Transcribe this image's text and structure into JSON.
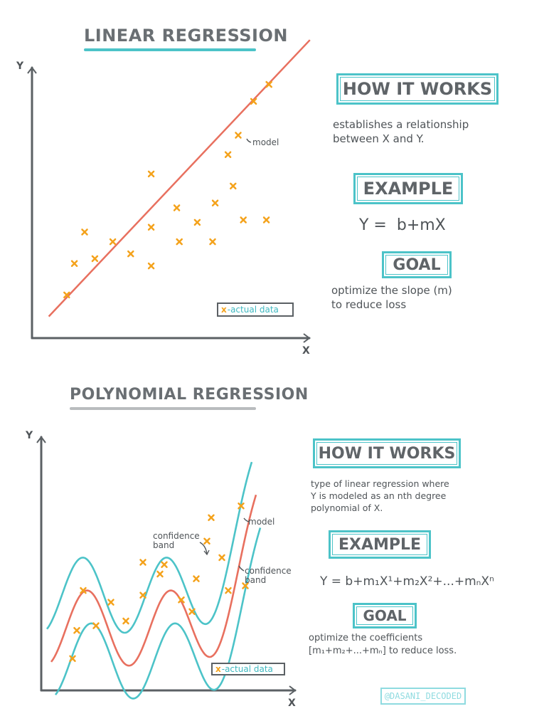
{
  "linear": {
    "title": "LINEAR REGRESSION",
    "how_title": "HOW IT WORKS",
    "how_text": [
      "establishes a relationship",
      "between X and Y."
    ],
    "example_title": "EXAMPLE",
    "formula": "Y =  b+mX",
    "goal_title": "GOAL",
    "goal_text": [
      "optimize the slope (m)",
      "to reduce loss"
    ],
    "model_label": "model",
    "legend_mark": "x",
    "legend_text": "-actual data",
    "y_axis": "Y",
    "x_axis": "X"
  },
  "polynomial": {
    "title": "POLYNOMIAL REGRESSION",
    "how_title": "HOW IT WORKS",
    "how_text": [
      "type of linear regression where",
      "Y is modeled as an nth degree",
      "polynomial of X."
    ],
    "example_title": "EXAMPLE",
    "formula": "Y = b+m₁X¹+m₂X²+...+mₙXⁿ",
    "goal_title": "GOAL",
    "goal_text": [
      "optimize the coefficients",
      "[m₁+m₂+...+mₙ] to reduce loss."
    ],
    "model_label": "model",
    "confidence_label_left": [
      "confidence",
      "band"
    ],
    "confidence_label_right": [
      "confidence",
      "band"
    ],
    "legend_mark": "x",
    "legend_text": "-actual data",
    "y_axis": "Y",
    "x_axis": "X"
  },
  "handle": "@DASANI_DECODED",
  "colors": {
    "teal": "#4cc3c8",
    "model_red": "#e8705f",
    "data_orange": "#f4a21b",
    "axis_gray": "#5b6064",
    "title_gray": "#6a6f73"
  },
  "chart_data": [
    {
      "type": "scatter",
      "title": "LINEAR REGRESSION",
      "xlabel": "X",
      "ylabel": "Y",
      "xlim": [
        0,
        10
      ],
      "ylim": [
        0,
        10
      ],
      "points": [
        [
          0.8,
          0.9
        ],
        [
          1.1,
          2.2
        ],
        [
          1.5,
          3.5
        ],
        [
          1.9,
          2.4
        ],
        [
          2.6,
          3.1
        ],
        [
          3.3,
          2.6
        ],
        [
          4.1,
          5.9
        ],
        [
          4.1,
          3.7
        ],
        [
          4.1,
          2.1
        ],
        [
          5.1,
          4.5
        ],
        [
          5.2,
          3.1
        ],
        [
          5.9,
          3.9
        ],
        [
          6.5,
          3.1
        ],
        [
          6.6,
          4.7
        ],
        [
          7.1,
          6.7
        ],
        [
          7.3,
          5.4
        ],
        [
          7.5,
          7.5
        ],
        [
          7.7,
          4.0
        ],
        [
          8.1,
          8.9
        ],
        [
          8.6,
          4.0
        ],
        [
          8.7,
          9.6
        ]
      ],
      "model_line": {
        "slope": 1.12,
        "intercept": -0.1
      }
    },
    {
      "type": "scatter",
      "title": "POLYNOMIAL REGRESSION",
      "xlabel": "X",
      "ylabel": "Y",
      "xlim": [
        0,
        10
      ],
      "ylim": [
        0,
        10
      ],
      "points": [
        [
          0.8,
          0.9
        ],
        [
          1.0,
          2.1
        ],
        [
          1.3,
          3.8
        ],
        [
          1.9,
          2.3
        ],
        [
          2.6,
          3.3
        ],
        [
          3.3,
          2.5
        ],
        [
          4.1,
          5.0
        ],
        [
          4.1,
          3.6
        ],
        [
          4.9,
          4.5
        ],
        [
          5.1,
          4.9
        ],
        [
          5.9,
          3.4
        ],
        [
          6.4,
          2.9
        ],
        [
          6.6,
          4.3
        ],
        [
          7.1,
          5.9
        ],
        [
          7.8,
          5.2
        ],
        [
          7.3,
          6.9
        ],
        [
          8.1,
          3.8
        ],
        [
          8.7,
          7.4
        ],
        [
          8.9,
          4.0
        ]
      ],
      "curves": [
        "model",
        "confidence band"
      ]
    }
  ]
}
